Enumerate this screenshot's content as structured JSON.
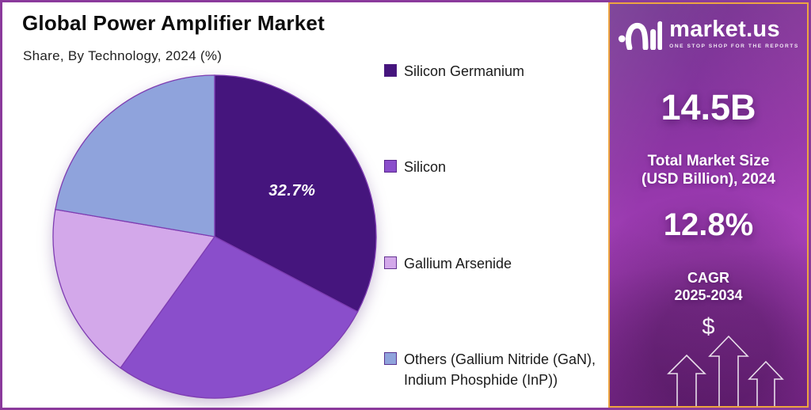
{
  "header": {
    "title": "Global Power Amplifier Market",
    "subtitle": "Share, By Technology, 2024 (%)"
  },
  "chart_data": {
    "type": "pie",
    "title": "Global Power Amplifier Market",
    "subtitle": "Share, By Technology, 2024 (%)",
    "unit": "%",
    "start_angle_deg": 0,
    "direction": "clockwise",
    "legend_position": "right",
    "stroke_color": "#7e3db2",
    "slices": [
      {
        "name": "Silicon Germanium",
        "value": 32.7,
        "color": "#45157d",
        "label": "32.7%",
        "label_color": "#ffffff"
      },
      {
        "name": "Silicon",
        "value": 27.2,
        "color": "#8a4ecb"
      },
      {
        "name": "Gallium Arsenide",
        "value": 17.8,
        "color": "#d3a8ea"
      },
      {
        "name": "Others (Gallium Nitride (GaN), Indium Phosphide (InP))",
        "value": 22.3,
        "color": "#8fa3dc"
      }
    ]
  },
  "sidebar": {
    "brand": {
      "name": "market.us",
      "tagline": "ONE STOP SHOP FOR THE REPORTS"
    },
    "market_size": {
      "value": "14.5B",
      "line1": "Total Market Size",
      "line2": "(USD Billion), 2024"
    },
    "cagr": {
      "value": "12.8%",
      "line1": "CAGR",
      "line2": "2025-2034"
    },
    "dollar": "$",
    "border_color": "#eda440"
  },
  "colors": {
    "page_border": "#8a3a9c",
    "background": "#ffffff",
    "legend_text": "#1b1b1b"
  }
}
